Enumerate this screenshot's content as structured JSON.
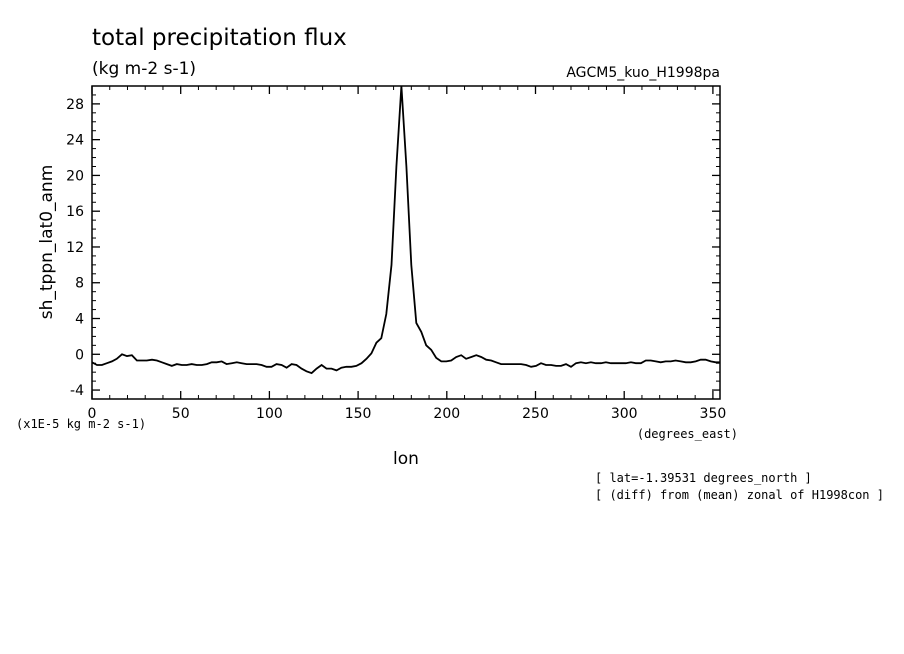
{
  "chart_data": {
    "type": "line",
    "title": "total precipitation flux",
    "units": "(kg m-2 s-1)",
    "experiment": "AGCM5_kuo_H1998pa",
    "ylabel": "sh_tppn_lat0_anm",
    "xlabel": "lon",
    "xunits": "(degrees_east)",
    "yscale_label": "(x1E-5 kg m-2 s-1)",
    "note_lat": "[ lat=-1.39531 degrees_north ]",
    "note_diff": "[ (diff) from (mean) zonal of H1998con ]",
    "xlim": [
      0,
      354
    ],
    "ylim": [
      -5,
      30
    ],
    "xticks": [
      0,
      50,
      100,
      150,
      200,
      250,
      300,
      350
    ],
    "yticks": [
      -4,
      0,
      4,
      8,
      12,
      16,
      20,
      24,
      28
    ],
    "grid": false,
    "x": [
      0,
      2.8,
      5.6,
      8.4,
      11.2,
      14,
      16.9,
      19.7,
      22.5,
      25.3,
      28.1,
      30.9,
      33.8,
      36.6,
      39.4,
      42.2,
      45,
      47.8,
      50.6,
      53.4,
      56.2,
      59,
      61.9,
      64.7,
      67.5,
      70.3,
      73.1,
      75.9,
      78.8,
      81.6,
      84.4,
      87.2,
      90,
      92.8,
      95.6,
      98.4,
      101.2,
      104,
      106.9,
      109.7,
      112.5,
      115.3,
      118.1,
      120.9,
      123.8,
      126.6,
      129.4,
      132.2,
      135,
      137.8,
      140.6,
      143.4,
      146.2,
      149,
      151.9,
      154.7,
      157.5,
      160.3,
      163.1,
      165.9,
      168.8,
      171.6,
      174.4,
      177.2,
      180,
      182.8,
      185.6,
      188.4,
      191.2,
      194,
      196.9,
      199.7,
      202.5,
      205.3,
      208.1,
      210.9,
      213.8,
      216.6,
      219.4,
      222.2,
      225,
      227.8,
      230.6,
      233.4,
      236.2,
      239,
      241.9,
      244.7,
      247.5,
      250.3,
      253.1,
      255.9,
      258.8,
      261.6,
      264.4,
      267.2,
      270,
      272.8,
      275.6,
      278.4,
      281.2,
      284,
      286.9,
      289.7,
      292.5,
      295.3,
      298.1,
      300.9,
      303.8,
      306.6,
      309.4,
      312.2,
      315,
      317.8,
      320.6,
      323.4,
      326.2,
      329,
      331.9,
      334.7,
      337.5,
      340.3,
      343.1,
      345.9,
      348.8,
      351.6,
      354.4
    ],
    "values": [
      -0.9,
      -1.2,
      -1.2,
      -1.0,
      -0.8,
      -0.5,
      0.0,
      -0.2,
      -0.1,
      -0.7,
      -0.7,
      -0.7,
      -0.6,
      -0.7,
      -0.9,
      -1.1,
      -1.3,
      -1.1,
      -1.2,
      -1.2,
      -1.1,
      -1.2,
      -1.2,
      -1.1,
      -0.9,
      -0.9,
      -0.8,
      -1.1,
      -1.0,
      -0.9,
      -1.0,
      -1.1,
      -1.1,
      -1.1,
      -1.2,
      -1.4,
      -1.4,
      -1.1,
      -1.2,
      -1.5,
      -1.1,
      -1.2,
      -1.6,
      -1.9,
      -2.1,
      -1.6,
      -1.2,
      -1.6,
      -1.6,
      -1.8,
      -1.5,
      -1.4,
      -1.4,
      -1.3,
      -1.0,
      -0.5,
      0.1,
      1.3,
      1.8,
      4.5,
      10.0,
      21.0,
      30.0,
      21.0,
      10.0,
      3.5,
      2.5,
      1.0,
      0.5,
      -0.4,
      -0.8,
      -0.8,
      -0.7,
      -0.3,
      -0.1,
      -0.5,
      -0.3,
      -0.1,
      -0.3,
      -0.6,
      -0.7,
      -0.9,
      -1.1,
      -1.1,
      -1.1,
      -1.1,
      -1.1,
      -1.2,
      -1.4,
      -1.3,
      -1.0,
      -1.2,
      -1.2,
      -1.3,
      -1.3,
      -1.1,
      -1.4,
      -1.0,
      -0.9,
      -1.0,
      -0.9,
      -1.0,
      -1.0,
      -0.9,
      -1.0,
      -1.0,
      -1.0,
      -1.0,
      -0.9,
      -1.0,
      -1.0,
      -0.7,
      -0.7,
      -0.8,
      -0.9,
      -0.8,
      -0.8,
      -0.7,
      -0.8,
      -0.9,
      -0.9,
      -0.8,
      -0.6,
      -0.6,
      -0.8,
      -0.9,
      -0.9
    ]
  }
}
